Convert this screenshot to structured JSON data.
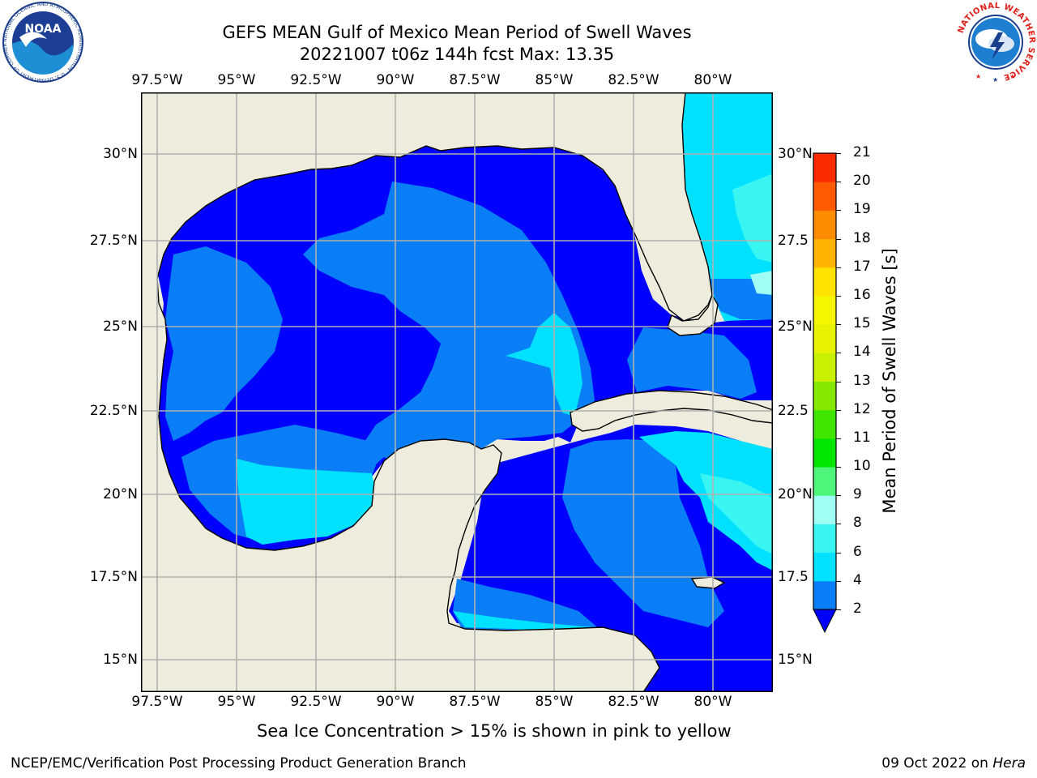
{
  "header": {
    "title_line1": "GEFS MEAN Gulf of Mexico Mean Period of Swell Waves",
    "title_line2": "20221007 t06z 144h fcst   Max: 13.35"
  },
  "map": {
    "lon_labels": [
      "97.5°W",
      "95°W",
      "92.5°W",
      "90°W",
      "87.5°W",
      "85°W",
      "82.5°W",
      "80°W"
    ],
    "lat_labels_left": [
      "30°N",
      "27.5°N",
      "25°N",
      "22.5°N",
      "20°N",
      "17.5°N",
      "15°N"
    ],
    "lat_labels_right": [
      "30°N",
      "27.5",
      "25°N",
      "22.5",
      "20°N",
      "17.5",
      "15°N"
    ],
    "land_color": "#eeecdc",
    "gridline_color": "#b0b0b0"
  },
  "colorbar": {
    "label": "Mean Period of Swell Waves [s]",
    "ticks": [
      "2",
      "4",
      "6",
      "8",
      "9",
      "10",
      "11",
      "12",
      "13",
      "14",
      "15",
      "16",
      "17",
      "18",
      "19",
      "20",
      "21"
    ],
    "colors": [
      "#0a7ef7",
      "#00e1ff",
      "#38f5f2",
      "#a0fff5",
      "#4df57a",
      "#00e600",
      "#41e600",
      "#86e800",
      "#c8f000",
      "#e6f200",
      "#f5f500",
      "#ffe200",
      "#ffb300",
      "#ff8c00",
      "#ff5a00",
      "#ff2b00"
    ],
    "under_color": "#0000ff"
  },
  "subtitle": "Sea Ice Concentration > 15% is shown in pink to yellow",
  "footer": {
    "left": "NCEP/EMC/Verification Post Processing Product Generation Branch",
    "right_date": "09 Oct 2022 on ",
    "right_host": "Hera"
  },
  "logos": {
    "noaa_text": "NOAA",
    "noaa_ring": "NATIONAL OCEANIC AND ATMOSPHERIC ADMINISTRATION · U.S. DEPARTMENT OF COMMERCE",
    "nws_ring": "NATIONAL WEATHER SERVICE"
  }
}
